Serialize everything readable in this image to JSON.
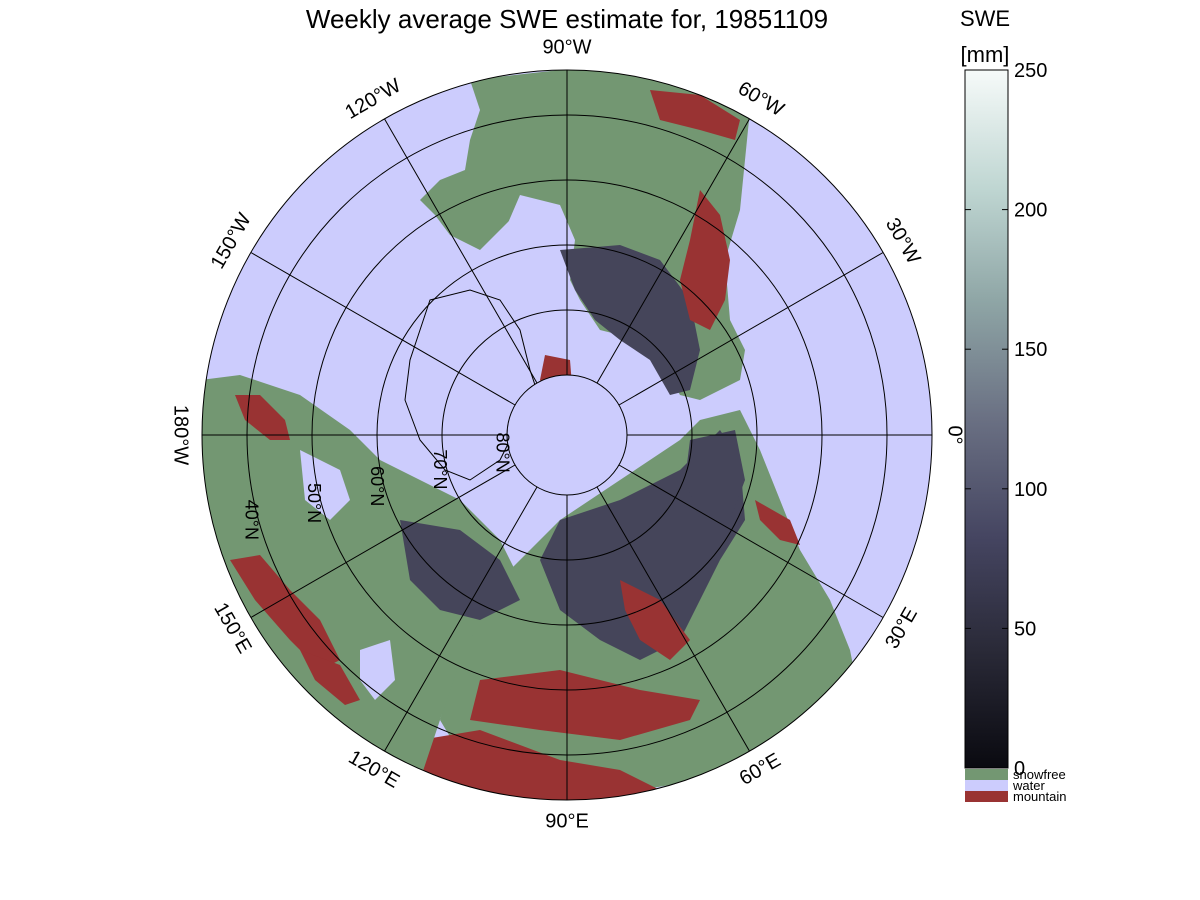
{
  "title": "Weekly average SWE estimate for, 19851109",
  "colorbar": {
    "label_line1": "SWE",
    "label_line2": "[mm]",
    "ticks": [
      "0",
      "50",
      "100",
      "150",
      "200",
      "250"
    ],
    "range": [
      0,
      250
    ],
    "ramp_colors": [
      "#0a0a10",
      "#2a2a38",
      "#454561",
      "#6a7083",
      "#8fa6a6",
      "#bfd6d2",
      "#f6faf9"
    ],
    "categories": [
      {
        "label": "snowfree",
        "color": "#739772"
      },
      {
        "label": "water",
        "color": "#ccccfd"
      },
      {
        "label": "mountain",
        "color": "#993333"
      }
    ]
  },
  "map": {
    "projection": "north polar stereographic",
    "ocean_color": "#ccccfd",
    "land_color": "#739772",
    "snow_color": "#45455a",
    "mountain_color": "#993333",
    "longitude_labels": [
      {
        "text": "90°W",
        "lon": -90
      },
      {
        "text": "120°W",
        "lon": -120
      },
      {
        "text": "150°W",
        "lon": -150
      },
      {
        "text": "180°W",
        "lon": 180
      },
      {
        "text": "150°E",
        "lon": 150
      },
      {
        "text": "120°E",
        "lon": 120
      },
      {
        "text": "90°E",
        "lon": 90
      },
      {
        "text": "60°E",
        "lon": 60
      },
      {
        "text": "30°E",
        "lon": 30
      },
      {
        "text": "0°",
        "lon": 0
      },
      {
        "text": "30°W",
        "lon": -30
      },
      {
        "text": "60°W",
        "lon": -60
      }
    ],
    "latitude_labels": [
      {
        "text": "80°N",
        "lat": 80
      },
      {
        "text": "70°N",
        "lat": 70
      },
      {
        "text": "60°N",
        "lat": 60
      },
      {
        "text": "50°N",
        "lat": 50
      },
      {
        "text": "40°N",
        "lat": 40
      }
    ]
  }
}
